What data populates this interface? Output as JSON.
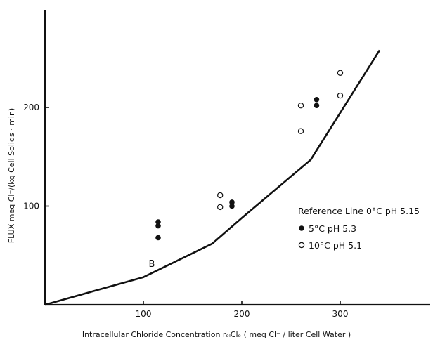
{
  "chart_data": {
    "type": "scatter",
    "panel_label": "B",
    "xlabel": "Intracellular Chloride Concentration  rₒₗClₒ  ( meq Cl⁻ / liter Cell Water )",
    "ylabel": "FLUX  meq Cl⁻/(kg Cell Solids · min)",
    "xlim": [
      0,
      380
    ],
    "ylim": [
      0,
      300
    ],
    "xticks": [
      100,
      200,
      300
    ],
    "yticks": [
      100,
      200
    ],
    "x_tick_labels": [
      "100",
      "200",
      "300"
    ],
    "y_tick_labels": [
      "100",
      "200"
    ],
    "grid": false,
    "legend_position": "right",
    "series": [
      {
        "name": "Reference Line 0°C pH 5.15",
        "type": "line",
        "points": [
          [
            0,
            0
          ],
          [
            50,
            14
          ],
          [
            100,
            28
          ],
          [
            170,
            62
          ],
          [
            200,
            88
          ],
          [
            270,
            147
          ],
          [
            340,
            258
          ]
        ]
      },
      {
        "name": "5°C pH 5.3",
        "type": "scatter",
        "marker": "filled-circle",
        "points": [
          [
            115,
            84
          ],
          [
            115,
            80
          ],
          [
            115,
            68
          ],
          [
            190,
            104
          ],
          [
            190,
            100
          ],
          [
            276,
            208
          ],
          [
            276,
            202
          ]
        ]
      },
      {
        "name": "10°C pH 5.1",
        "type": "scatter",
        "marker": "open-circle",
        "points": [
          [
            178,
            111
          ],
          [
            178,
            99
          ],
          [
            260,
            202
          ],
          [
            260,
            176
          ],
          [
            300,
            235
          ],
          [
            300,
            212
          ]
        ]
      }
    ]
  }
}
